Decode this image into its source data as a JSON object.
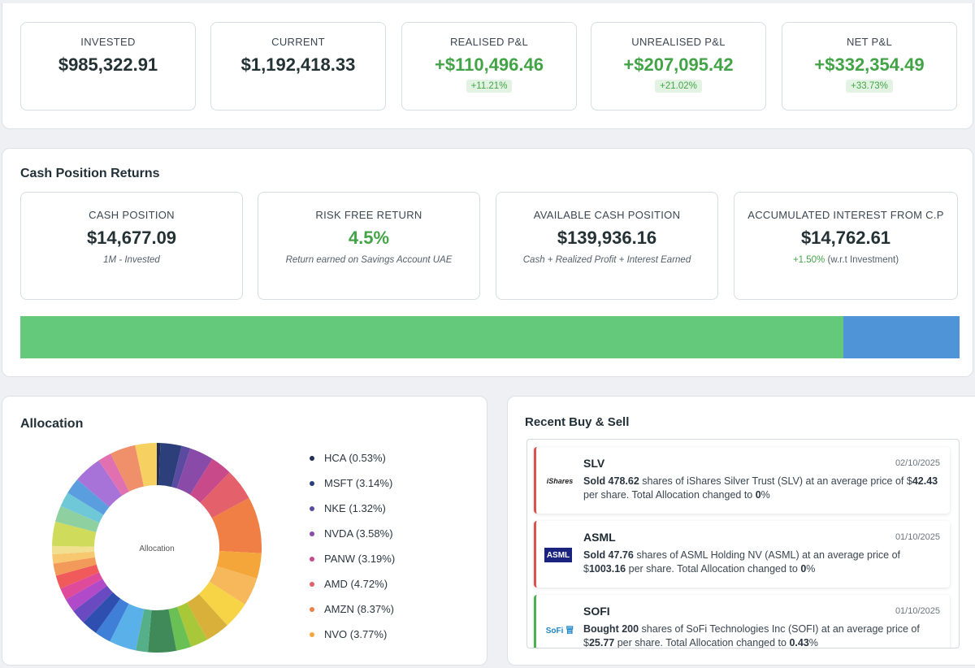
{
  "summary": {
    "cards": [
      {
        "label": "INVESTED",
        "value": "$985,322.91",
        "badge": ""
      },
      {
        "label": "CURRENT",
        "value": "$1,192,418.33",
        "badge": ""
      },
      {
        "label": "REALISED P&L",
        "value": "+$110,496.46",
        "badge": "+11.21%"
      },
      {
        "label": "UNREALISED P&L",
        "value": "+$207,095.42",
        "badge": "+21.02%"
      },
      {
        "label": "NET P&L",
        "value": "+$332,354.49",
        "badge": "+33.73%"
      }
    ]
  },
  "cash": {
    "title": "Cash Position Returns",
    "cards": [
      {
        "label": "CASH POSITION",
        "value": "$14,677.09",
        "sub": "1M - Invested"
      },
      {
        "label": "RISK FREE RETURN",
        "value": "4.5%",
        "sub": "Return earned on Savings Account UAE"
      },
      {
        "label": "AVAILABLE CASH POSITION",
        "value": "$139,936.16",
        "sub": "Cash + Realized Profit + Interest Earned"
      },
      {
        "label": "ACCUMULATED INTEREST FROM C.P",
        "value": "$14,762.61",
        "sub_pct": "+1.50%",
        "sub_rest": "(w.r.t Investment)"
      }
    ],
    "bar": {
      "green_fraction": 0.876,
      "green_color": "#64c97a",
      "blue_color": "#4f94d6"
    }
  },
  "allocation": {
    "title": "Allocation",
    "center_label": "Allocation",
    "legend": [
      {
        "label": "HCA (0.53%)",
        "color": "#1f2f55"
      },
      {
        "label": "MSFT (3.14%)",
        "color": "#2d3f7a"
      },
      {
        "label": "NKE (1.32%)",
        "color": "#5a4aa0"
      },
      {
        "label": "NVDA (3.58%)",
        "color": "#8a4aa8"
      },
      {
        "label": "PANW (3.19%)",
        "color": "#c84a8a"
      },
      {
        "label": "AMD (4.72%)",
        "color": "#e4606a"
      },
      {
        "label": "AMZN (8.37%)",
        "color": "#ef7f45"
      },
      {
        "label": "NVO (3.77%)",
        "color": "#f4a63a"
      }
    ],
    "slices": [
      {
        "value": 0.53,
        "color": "#1f2f55"
      },
      {
        "value": 3.14,
        "color": "#2d3f7a"
      },
      {
        "value": 1.32,
        "color": "#5a4aa0"
      },
      {
        "value": 3.58,
        "color": "#8a4aa8"
      },
      {
        "value": 3.19,
        "color": "#c84a8a"
      },
      {
        "value": 4.72,
        "color": "#e4606a"
      },
      {
        "value": 8.37,
        "color": "#ef7f45"
      },
      {
        "value": 3.77,
        "color": "#f4a63a"
      },
      {
        "value": 4.2,
        "color": "#f6b85a"
      },
      {
        "value": 4.0,
        "color": "#f7d445"
      },
      {
        "value": 3.6,
        "color": "#d8b03a"
      },
      {
        "value": 2.6,
        "color": "#a8c83a"
      },
      {
        "value": 2.2,
        "color": "#6abf55"
      },
      {
        "value": 4.2,
        "color": "#3f8a58"
      },
      {
        "value": 1.8,
        "color": "#55b08a"
      },
      {
        "value": 4.0,
        "color": "#5ab0e8"
      },
      {
        "value": 2.4,
        "color": "#3f7fd8"
      },
      {
        "value": 2.4,
        "color": "#2f4fb0"
      },
      {
        "value": 2.2,
        "color": "#6a4ac0"
      },
      {
        "value": 2.0,
        "color": "#b04ac8"
      },
      {
        "value": 1.8,
        "color": "#e04a9a"
      },
      {
        "value": 2.0,
        "color": "#f05a5a"
      },
      {
        "value": 1.8,
        "color": "#f29a5a"
      },
      {
        "value": 1.4,
        "color": "#f7c870"
      },
      {
        "value": 1.2,
        "color": "#f0e090"
      },
      {
        "value": 3.6,
        "color": "#cfdb5a"
      },
      {
        "value": 2.4,
        "color": "#8fd0a0"
      },
      {
        "value": 2.2,
        "color": "#6fc8d8"
      },
      {
        "value": 2.4,
        "color": "#5a9ee0"
      },
      {
        "value": 4.2,
        "color": "#a873d8"
      },
      {
        "value": 2.0,
        "color": "#e070b0"
      },
      {
        "value": 3.8,
        "color": "#f0906a"
      },
      {
        "value": 3.2,
        "color": "#f6d060"
      }
    ]
  },
  "trades": {
    "title": "Recent Buy & Sell",
    "items": [
      {
        "type": "sell",
        "symbol": "SLV",
        "date": "02/10/2025",
        "logo": "iShares",
        "logo_color": "#222222",
        "p1": "Sold 478.62",
        "p2": " shares of iShares Silver Trust (SLV) at an average price of $",
        "p3": "42.43",
        "p4": " per share. Total Allocation changed to ",
        "p5": "0",
        "p6": "%"
      },
      {
        "type": "sell",
        "symbol": "ASML",
        "date": "01/10/2025",
        "logo": "ASML",
        "logo_color": "#1a237e",
        "p1": "Sold 47.76",
        "p2": " shares of ASML Holding NV (ASML) at an average price of $",
        "p3": "1003.16",
        "p4": " per share. Total Allocation changed to ",
        "p5": "0",
        "p6": "%"
      },
      {
        "type": "buy",
        "symbol": "SOFI",
        "date": "01/10/2025",
        "logo": "SoFi 冒",
        "logo_color": "#1e88c8",
        "p1": "Bought 200",
        "p2": " shares of SoFi Technologies Inc (SOFI) at an average price of $",
        "p3": "25.77",
        "p4": " per share. Total Allocation changed to ",
        "p5": "0.43",
        "p6": "%"
      }
    ]
  }
}
